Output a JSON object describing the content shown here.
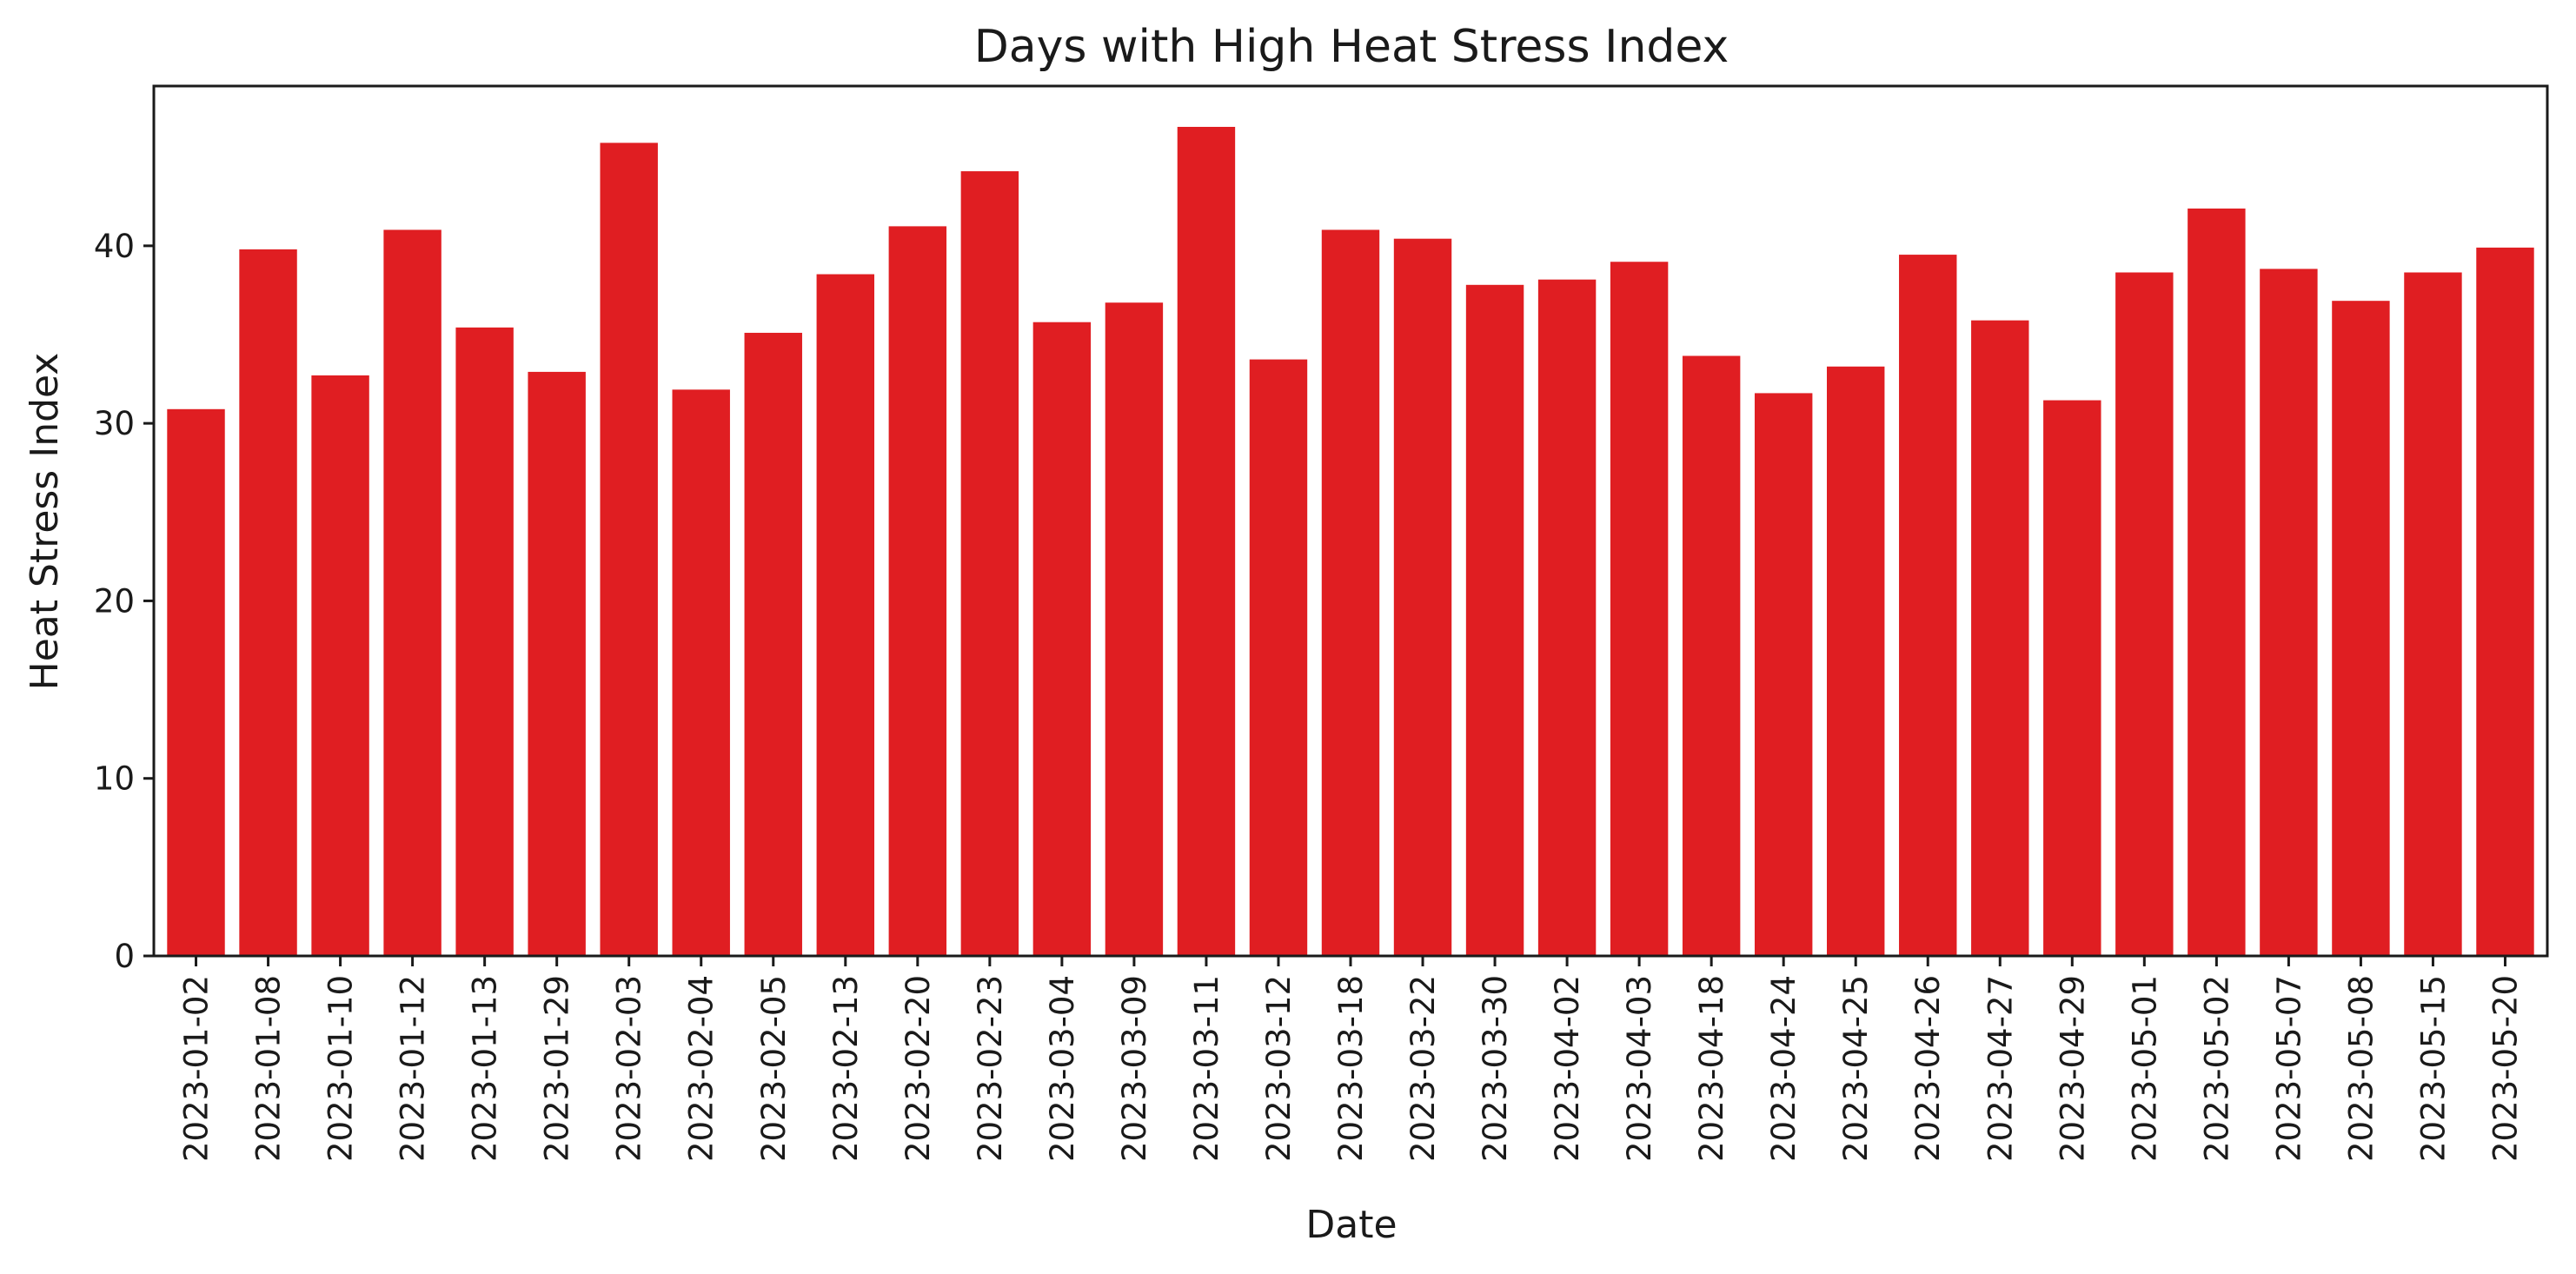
{
  "chart_data": {
    "type": "bar",
    "title": "Days with High Heat Stress Index",
    "xlabel": "Date",
    "ylabel": "Heat Stress Index",
    "ylim": [
      0,
      49
    ],
    "yticks": [
      0,
      10,
      20,
      30,
      40
    ],
    "grid": false,
    "bar_color": "#e01e22",
    "categories": [
      "2023-01-02",
      "2023-01-08",
      "2023-01-10",
      "2023-01-12",
      "2023-01-13",
      "2023-01-29",
      "2023-02-03",
      "2023-02-04",
      "2023-02-05",
      "2023-02-13",
      "2023-02-20",
      "2023-02-23",
      "2023-03-04",
      "2023-03-09",
      "2023-03-11",
      "2023-03-12",
      "2023-03-18",
      "2023-03-22",
      "2023-03-30",
      "2023-04-02",
      "2023-04-03",
      "2023-04-18",
      "2023-04-24",
      "2023-04-25",
      "2023-04-26",
      "2023-04-27",
      "2023-04-29",
      "2023-05-01",
      "2023-05-02",
      "2023-05-07",
      "2023-05-08",
      "2023-05-15",
      "2023-05-20"
    ],
    "values": [
      30.8,
      39.8,
      32.7,
      40.9,
      35.4,
      32.9,
      45.8,
      31.9,
      35.1,
      38.4,
      41.1,
      44.2,
      35.7,
      36.8,
      46.7,
      33.6,
      40.9,
      40.4,
      37.8,
      38.1,
      39.1,
      33.8,
      31.7,
      33.2,
      39.5,
      35.8,
      31.3,
      38.5,
      42.1,
      38.7,
      36.9,
      38.5,
      39.9
    ]
  }
}
